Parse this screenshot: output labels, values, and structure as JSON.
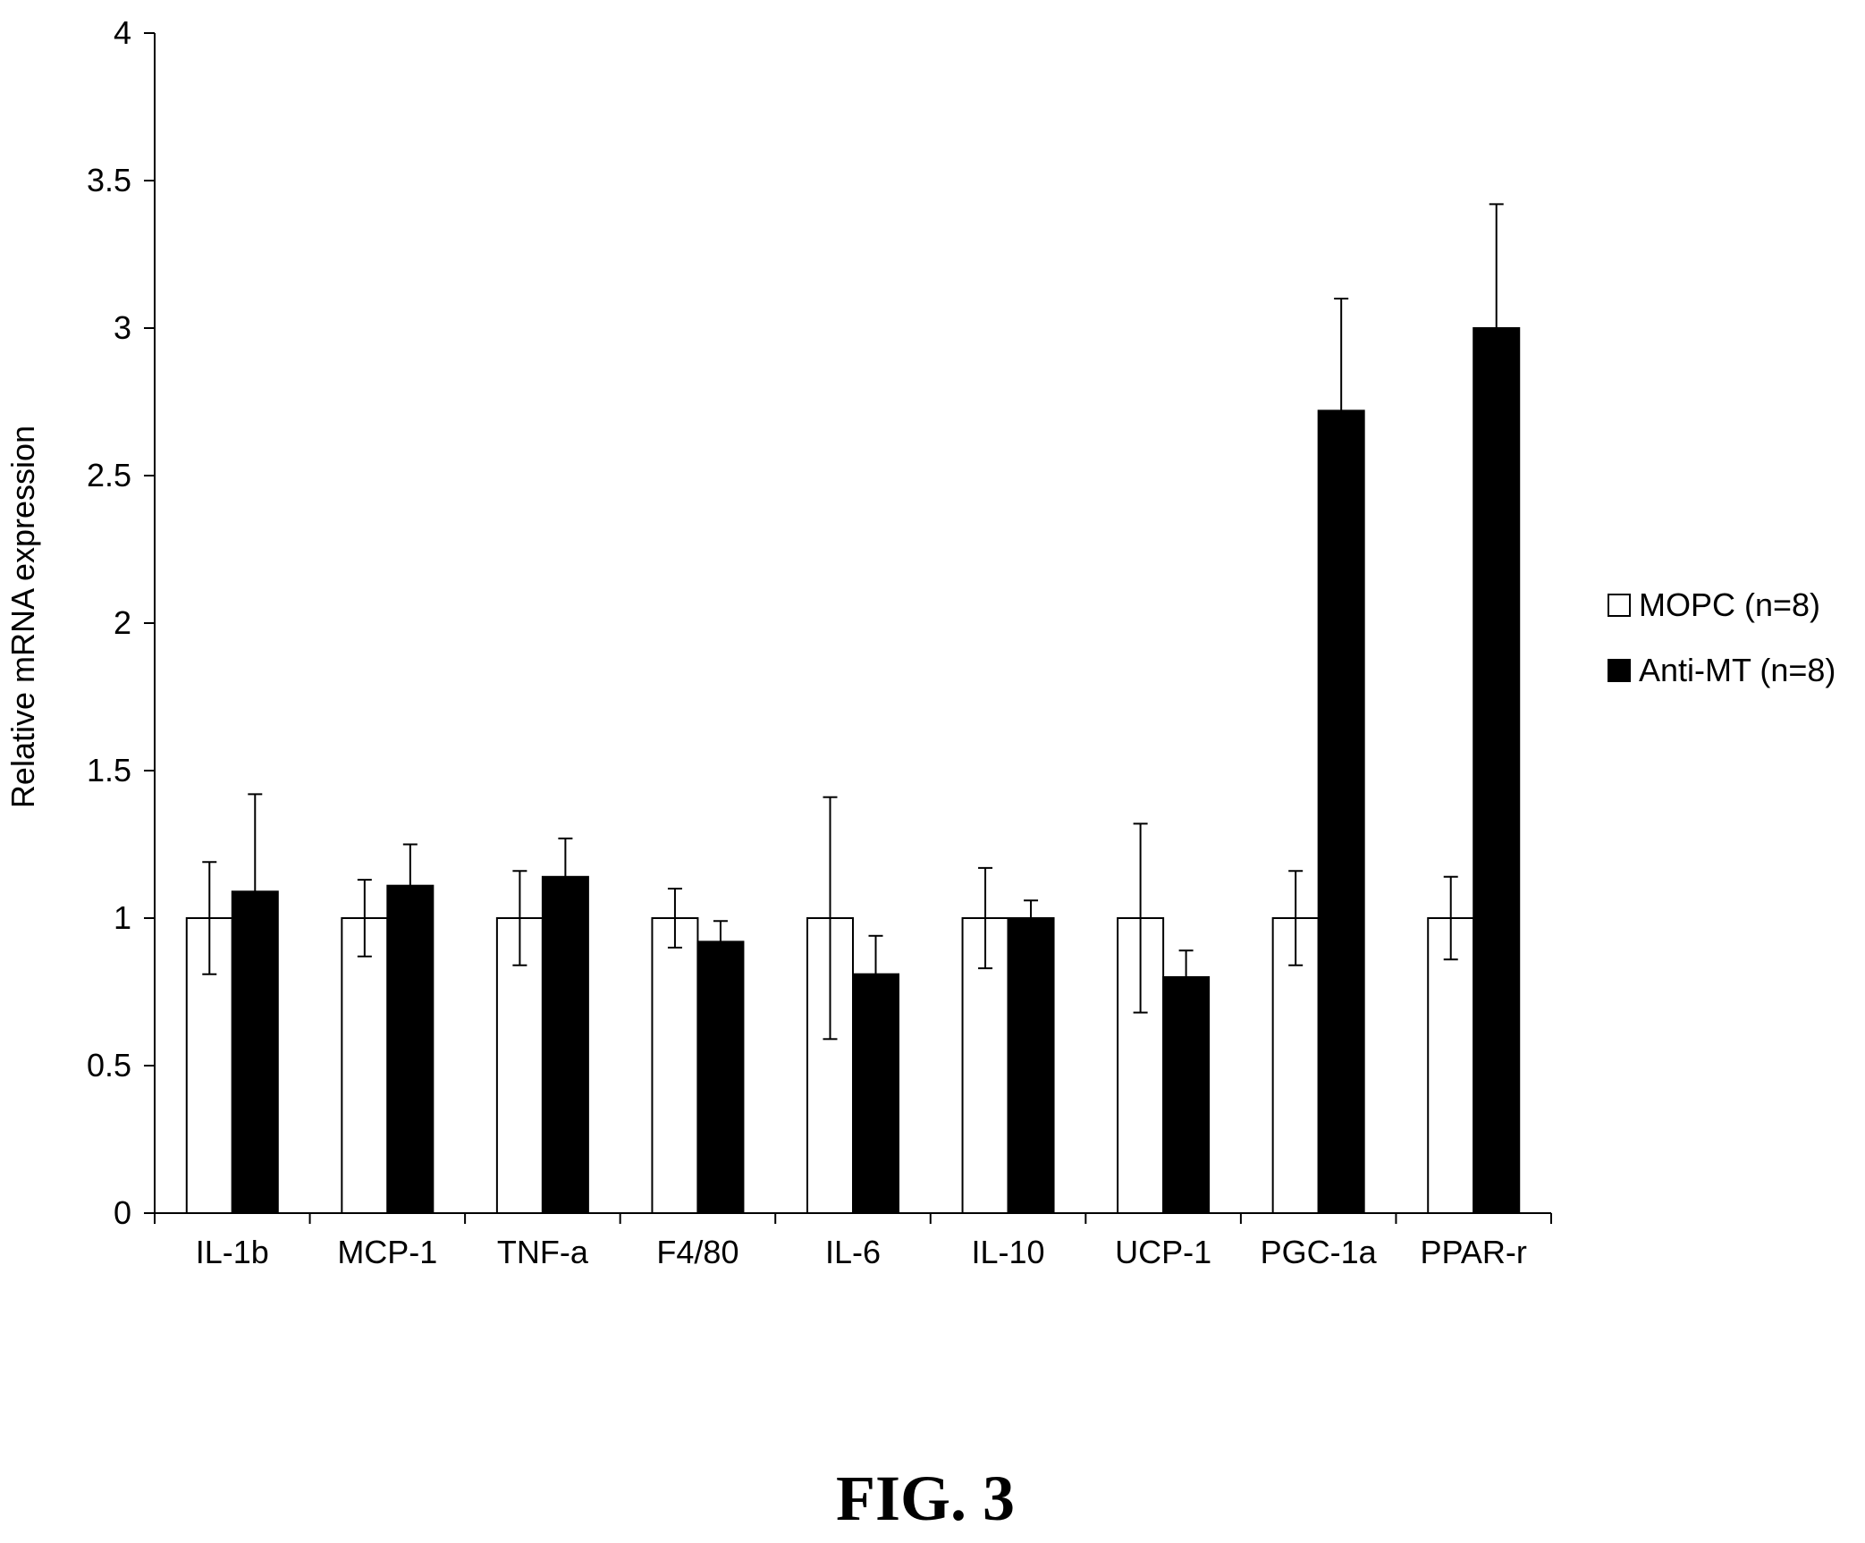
{
  "chart_data": {
    "type": "bar",
    "title": "",
    "xlabel": "",
    "ylabel": "Relative mRNA expression",
    "ylim": [
      0,
      4
    ],
    "yticks": [
      "0",
      "0.5",
      "1",
      "1.5",
      "2",
      "2.5",
      "3",
      "3.5",
      "4"
    ],
    "categories": [
      "IL-1b",
      "MCP-1",
      "TNF-a",
      "F4/80",
      "IL-6",
      "IL-10",
      "UCP-1",
      "PGC-1a",
      "PPAR-r"
    ],
    "series": [
      {
        "name": "MOPC (n=8)",
        "color": "#ffffff",
        "values": [
          1,
          1,
          1,
          1,
          1,
          1,
          1,
          1,
          1
        ],
        "errors": [
          0.19,
          0.13,
          0.16,
          0.1,
          0.41,
          0.17,
          0.32,
          0.16,
          0.14
        ]
      },
      {
        "name": "Anti-MT (n=8)",
        "color": "#000000",
        "values": [
          1.09,
          1.11,
          1.14,
          0.92,
          0.81,
          1.0,
          0.8,
          2.72,
          3.0
        ],
        "errors": [
          0.33,
          0.14,
          0.13,
          0.07,
          0.13,
          0.06,
          0.09,
          0.38,
          0.42
        ]
      }
    ],
    "grid": false,
    "legend_position": "right"
  },
  "figure_label": "FIG. 3"
}
